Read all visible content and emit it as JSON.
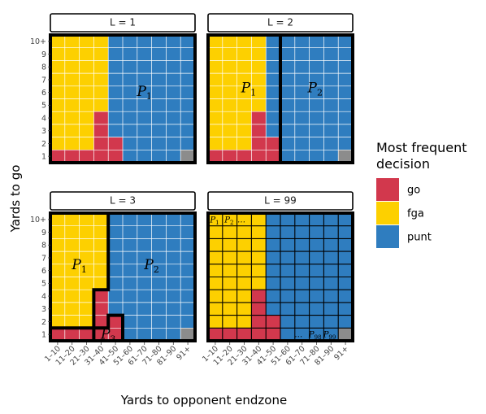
{
  "chart_data": {
    "type": "heatmap",
    "xlabel": "Yards to opponent endzone",
    "ylabel": "Yards to go",
    "x_categories": [
      "1–10",
      "11–20",
      "21–30",
      "31–40",
      "41–50",
      "51–60",
      "61–70",
      "71–80",
      "81–90",
      "91+"
    ],
    "y_categories": [
      "1",
      "2",
      "3",
      "4",
      "5",
      "6",
      "7",
      "8",
      "9",
      "10+"
    ],
    "legend": {
      "title_lines": [
        "Most frequent",
        "decision"
      ],
      "entries": [
        {
          "key": "go",
          "label": "go",
          "color": "#D2384D"
        },
        {
          "key": "fga",
          "label": "fga",
          "color": "#FDD000"
        },
        {
          "key": "punt",
          "label": "punt",
          "color": "#2F7DBF"
        }
      ]
    },
    "missing_color": "#8C8C8C",
    "decision_grid_rows_bottom_to_top": [
      [
        "go",
        "go",
        "go",
        "go",
        "go",
        "punt",
        "punt",
        "punt",
        "punt",
        "NA"
      ],
      [
        "fga",
        "fga",
        "fga",
        "go",
        "go",
        "punt",
        "punt",
        "punt",
        "punt",
        "punt"
      ],
      [
        "fga",
        "fga",
        "fga",
        "go",
        "punt",
        "punt",
        "punt",
        "punt",
        "punt",
        "punt"
      ],
      [
        "fga",
        "fga",
        "fga",
        "go",
        "punt",
        "punt",
        "punt",
        "punt",
        "punt",
        "punt"
      ],
      [
        "fga",
        "fga",
        "fga",
        "fga",
        "punt",
        "punt",
        "punt",
        "punt",
        "punt",
        "punt"
      ],
      [
        "fga",
        "fga",
        "fga",
        "fga",
        "punt",
        "punt",
        "punt",
        "punt",
        "punt",
        "punt"
      ],
      [
        "fga",
        "fga",
        "fga",
        "fga",
        "punt",
        "punt",
        "punt",
        "punt",
        "punt",
        "punt"
      ],
      [
        "fga",
        "fga",
        "fga",
        "fga",
        "punt",
        "punt",
        "punt",
        "punt",
        "punt",
        "punt"
      ],
      [
        "fga",
        "fga",
        "fga",
        "fga",
        "punt",
        "punt",
        "punt",
        "punt",
        "punt",
        "punt"
      ],
      [
        "fga",
        "fga",
        "fga",
        "fga",
        "punt",
        "punt",
        "punt",
        "punt",
        "punt",
        "punt"
      ]
    ],
    "panels": [
      {
        "strip_label": "L = 1",
        "partition_boundaries": [],
        "labels": [
          {
            "main": "P",
            "sub": "1",
            "x": 6.5,
            "y": 5.6,
            "size": "big"
          }
        ]
      },
      {
        "strip_label": "L = 2",
        "partition_boundaries": [
          {
            "points": [
              [
                5,
                0
              ],
              [
                5,
                10
              ]
            ]
          }
        ],
        "labels": [
          {
            "main": "P",
            "sub": "1",
            "x": 2.8,
            "y": 5.9,
            "size": "big"
          },
          {
            "main": "P",
            "sub": "2",
            "x": 7.4,
            "y": 5.9,
            "size": "big"
          }
        ]
      },
      {
        "strip_label": "L = 3",
        "partition_boundaries": [
          {
            "points": [
              [
                0,
                1
              ],
              [
                3,
                1
              ],
              [
                3,
                4
              ],
              [
                4,
                4
              ],
              [
                4,
                10
              ]
            ]
          },
          {
            "points": [
              [
                3,
                0
              ],
              [
                3,
                1
              ],
              [
                4,
                1
              ],
              [
                4,
                2
              ],
              [
                5,
                2
              ],
              [
                5,
                0
              ]
            ]
          }
        ],
        "labels": [
          {
            "main": "P",
            "sub": "1",
            "x": 2.0,
            "y": 6.0,
            "size": "big"
          },
          {
            "main": "P",
            "sub": "2",
            "x": 7.0,
            "y": 6.0,
            "size": "big"
          },
          {
            "main": "P",
            "sub": "3",
            "x": 4.0,
            "y": 0.55,
            "size": "big"
          }
        ]
      },
      {
        "strip_label": "L = 99",
        "partition_boundaries": [],
        "every_cell_boxed": true,
        "labels": [
          {
            "main": "P",
            "sub": "1",
            "x": 0.45,
            "y": 9.5,
            "size": "small"
          },
          {
            "main": "P",
            "sub": "2",
            "x": 1.45,
            "y": 9.5,
            "size": "small"
          },
          {
            "main": "…",
            "sub": "",
            "x": 2.3,
            "y": 9.5,
            "size": "small"
          },
          {
            "main": "…",
            "sub": "",
            "x": 6.25,
            "y": 0.5,
            "size": "small"
          },
          {
            "main": "P",
            "sub": "98",
            "x": 7.4,
            "y": 0.5,
            "size": "small"
          },
          {
            "main": "P",
            "sub": "99",
            "x": 8.4,
            "y": 0.5,
            "size": "small"
          }
        ]
      }
    ]
  }
}
